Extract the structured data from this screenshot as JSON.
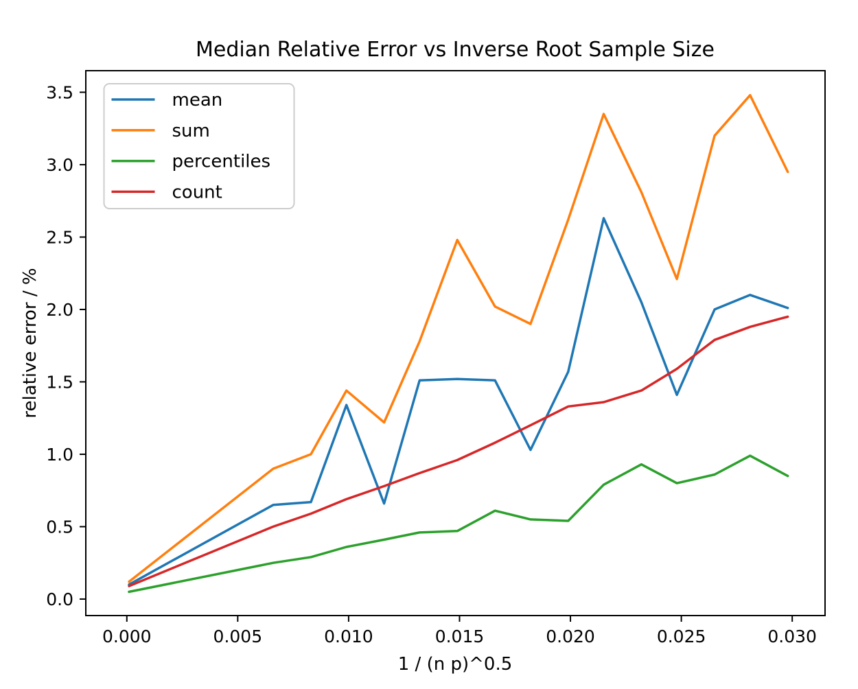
{
  "chart_data": {
    "type": "line",
    "title": "Median Relative Error vs Inverse Root Sample Size",
    "xlabel": "1 / (n p)^0.5",
    "ylabel": "relative error / %",
    "grid": false,
    "legend_position": "upper left",
    "xlim": [
      -0.00185,
      0.03148
    ],
    "ylim": [
      -0.114,
      3.649
    ],
    "xticks": {
      "values": [
        0.0,
        0.005,
        0.01,
        0.015,
        0.02,
        0.025,
        0.03
      ],
      "labels": [
        "0.000",
        "0.005",
        "0.010",
        "0.015",
        "0.020",
        "0.025",
        "0.030"
      ]
    },
    "yticks": {
      "values": [
        0.0,
        0.5,
        1.0,
        1.5,
        2.0,
        2.5,
        3.0,
        3.5
      ],
      "labels": [
        "0.0",
        "0.5",
        "1.0",
        "1.5",
        "2.0",
        "2.5",
        "3.0",
        "3.5"
      ]
    },
    "x": [
      0.0001,
      0.0066,
      0.0083,
      0.0099,
      0.0116,
      0.0132,
      0.0149,
      0.0166,
      0.0182,
      0.0199,
      0.0215,
      0.0232,
      0.0248,
      0.0265,
      0.0281,
      0.0298
    ],
    "series": [
      {
        "name": "mean",
        "color": "#1f77b4",
        "values": [
          0.1,
          0.65,
          0.67,
          1.34,
          0.66,
          1.51,
          1.52,
          1.51,
          1.03,
          1.57,
          2.63,
          2.05,
          1.41,
          2.0,
          2.1,
          2.01
        ]
      },
      {
        "name": "sum",
        "color": "#ff7f0e",
        "values": [
          0.12,
          0.9,
          1.0,
          1.44,
          1.22,
          1.78,
          2.48,
          2.02,
          1.9,
          2.62,
          3.35,
          2.81,
          2.21,
          3.2,
          3.48,
          2.95
        ]
      },
      {
        "name": "percentiles",
        "color": "#2ca02c",
        "values": [
          0.05,
          0.25,
          0.29,
          0.36,
          0.41,
          0.46,
          0.47,
          0.61,
          0.55,
          0.54,
          0.79,
          0.93,
          0.8,
          0.86,
          0.99,
          0.85
        ]
      },
      {
        "name": "count",
        "color": "#d62728",
        "values": [
          0.09,
          0.5,
          0.59,
          0.69,
          0.78,
          0.87,
          0.96,
          1.08,
          1.2,
          1.33,
          1.36,
          1.44,
          1.59,
          1.79,
          1.88,
          1.95
        ]
      }
    ]
  }
}
